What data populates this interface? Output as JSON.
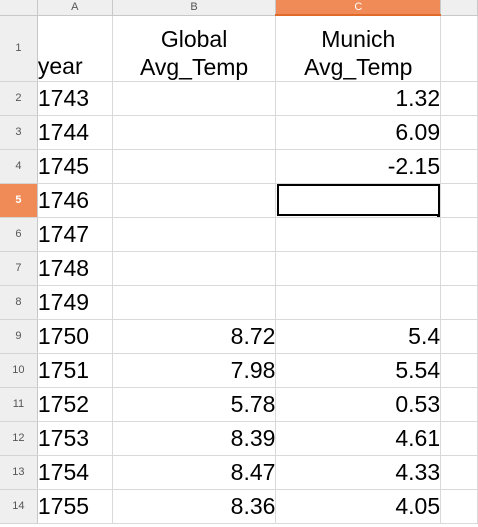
{
  "columns": [
    "A",
    "B",
    "C"
  ],
  "selected_column": "C",
  "header_row": {
    "row_number": "1",
    "a": "year",
    "b_line1": "Global",
    "b_line2": "Avg_Temp",
    "c_line1": "Munich",
    "c_line2": "Avg_Temp"
  },
  "rows": [
    {
      "n": "2",
      "year": "1743",
      "global": "",
      "munich": "1.32"
    },
    {
      "n": "3",
      "year": "1744",
      "global": "",
      "munich": "6.09"
    },
    {
      "n": "4",
      "year": "1745",
      "global": "",
      "munich": "-2.15"
    },
    {
      "n": "5",
      "year": "1746",
      "global": "",
      "munich": ""
    },
    {
      "n": "6",
      "year": "1747",
      "global": "",
      "munich": ""
    },
    {
      "n": "7",
      "year": "1748",
      "global": "",
      "munich": ""
    },
    {
      "n": "8",
      "year": "1749",
      "global": "",
      "munich": ""
    },
    {
      "n": "9",
      "year": "1750",
      "global": "8.72",
      "munich": "5.4"
    },
    {
      "n": "10",
      "year": "1751",
      "global": "7.98",
      "munich": "5.54"
    },
    {
      "n": "11",
      "year": "1752",
      "global": "5.78",
      "munich": "0.53"
    },
    {
      "n": "12",
      "year": "1753",
      "global": "8.39",
      "munich": "4.61"
    },
    {
      "n": "13",
      "year": "1754",
      "global": "8.47",
      "munich": "4.33"
    },
    {
      "n": "14",
      "year": "1755",
      "global": "8.36",
      "munich": "4.05"
    }
  ],
  "active_cell": {
    "row": "5",
    "col": "C"
  },
  "colors": {
    "selection_accent": "#f08a56",
    "header_bg": "#efefef"
  }
}
